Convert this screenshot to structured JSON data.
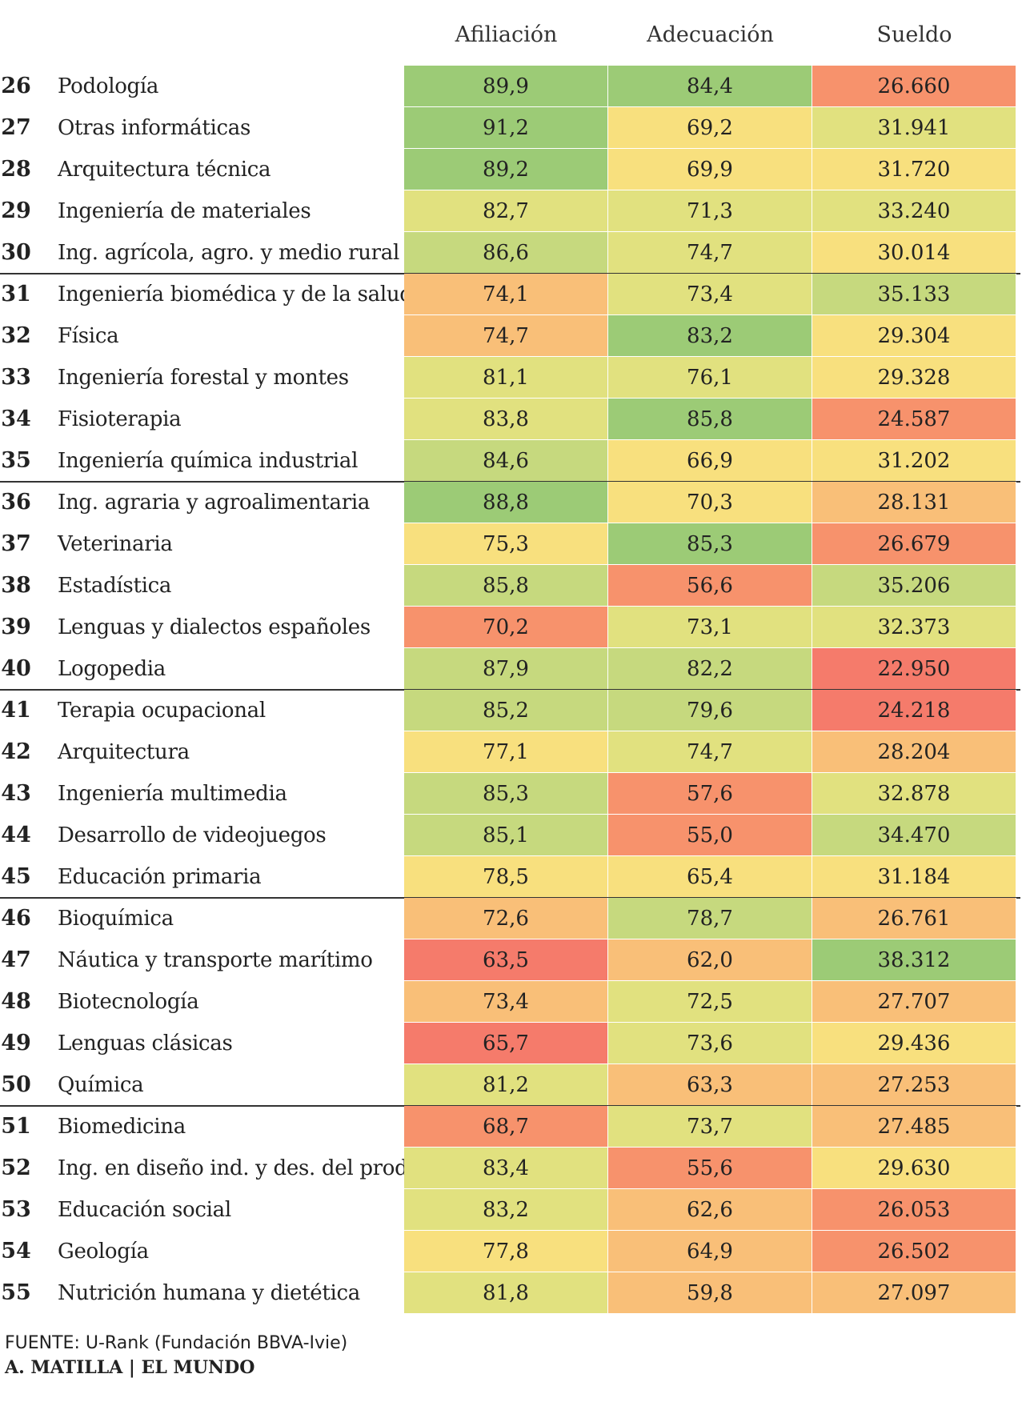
{
  "chart_data": {
    "type": "table",
    "columns": [
      "Afiliación",
      "Adecuación",
      "Sueldo"
    ],
    "rows": [
      {
        "rank": "26",
        "name": "Podología",
        "afiliacion": "89,9",
        "adecuacion": "84,4",
        "sueldo": "26.660"
      },
      {
        "rank": "27",
        "name": "Otras informáticas",
        "afiliacion": "91,2",
        "adecuacion": "69,2",
        "sueldo": "31.941"
      },
      {
        "rank": "28",
        "name": "Arquitectura técnica",
        "afiliacion": "89,2",
        "adecuacion": "69,9",
        "sueldo": "31.720"
      },
      {
        "rank": "29",
        "name": "Ingeniería de materiales",
        "afiliacion": "82,7",
        "adecuacion": "71,3",
        "sueldo": "33.240"
      },
      {
        "rank": "30",
        "name": "Ing. agrícola, agro. y medio rural",
        "afiliacion": "86,6",
        "adecuacion": "74,7",
        "sueldo": "30.014"
      },
      {
        "rank": "31",
        "name": "Ingeniería biomédica y de la salud",
        "afiliacion": "74,1",
        "adecuacion": "73,4",
        "sueldo": "35.133"
      },
      {
        "rank": "32",
        "name": "Física",
        "afiliacion": "74,7",
        "adecuacion": "83,2",
        "sueldo": "29.304"
      },
      {
        "rank": "33",
        "name": "Ingeniería forestal y montes",
        "afiliacion": "81,1",
        "adecuacion": "76,1",
        "sueldo": "29.328"
      },
      {
        "rank": "34",
        "name": "Fisioterapia",
        "afiliacion": "83,8",
        "adecuacion": "85,8",
        "sueldo": "24.587"
      },
      {
        "rank": "35",
        "name": "Ingeniería química industrial",
        "afiliacion": "84,6",
        "adecuacion": "66,9",
        "sueldo": "31.202"
      },
      {
        "rank": "36",
        "name": "Ing. agraria y agroalimentaria",
        "afiliacion": "88,8",
        "adecuacion": "70,3",
        "sueldo": "28.131"
      },
      {
        "rank": "37",
        "name": "Veterinaria",
        "afiliacion": "75,3",
        "adecuacion": "85,3",
        "sueldo": "26.679"
      },
      {
        "rank": "38",
        "name": "Estadística",
        "afiliacion": "85,8",
        "adecuacion": "56,6",
        "sueldo": "35.206"
      },
      {
        "rank": "39",
        "name": "Lenguas y dialectos españoles",
        "afiliacion": "70,2",
        "adecuacion": "73,1",
        "sueldo": "32.373"
      },
      {
        "rank": "40",
        "name": "Logopedia",
        "afiliacion": "87,9",
        "adecuacion": "82,2",
        "sueldo": "22.950"
      },
      {
        "rank": "41",
        "name": "Terapia ocupacional",
        "afiliacion": "85,2",
        "adecuacion": "79,6",
        "sueldo": "24.218"
      },
      {
        "rank": "42",
        "name": "Arquitectura",
        "afiliacion": "77,1",
        "adecuacion": "74,7",
        "sueldo": "28.204"
      },
      {
        "rank": "43",
        "name": "Ingeniería multimedia",
        "afiliacion": "85,3",
        "adecuacion": "57,6",
        "sueldo": "32.878"
      },
      {
        "rank": "44",
        "name": "Desarrollo de videojuegos",
        "afiliacion": "85,1",
        "adecuacion": "55,0",
        "sueldo": "34.470"
      },
      {
        "rank": "45",
        "name": "Educación primaria",
        "afiliacion": "78,5",
        "adecuacion": "65,4",
        "sueldo": "31.184"
      },
      {
        "rank": "46",
        "name": "Bioquímica",
        "afiliacion": "72,6",
        "adecuacion": "78,7",
        "sueldo": "26.761"
      },
      {
        "rank": "47",
        "name": "Náutica y transporte marítimo",
        "afiliacion": "63,5",
        "adecuacion": "62,0",
        "sueldo": "38.312"
      },
      {
        "rank": "48",
        "name": "Biotecnología",
        "afiliacion": "73,4",
        "adecuacion": "72,5",
        "sueldo": "27.707"
      },
      {
        "rank": "49",
        "name": "Lenguas clásicas",
        "afiliacion": "65,7",
        "adecuacion": "73,6",
        "sueldo": "29.436"
      },
      {
        "rank": "50",
        "name": "Química",
        "afiliacion": "81,2",
        "adecuacion": "63,3",
        "sueldo": "27.253"
      },
      {
        "rank": "51",
        "name": "Biomedicina",
        "afiliacion": "68,7",
        "adecuacion": "73,7",
        "sueldo": "27.485"
      },
      {
        "rank": "52",
        "name": "Ing. en diseño ind. y des. del producto",
        "afiliacion": "83,4",
        "adecuacion": "55,6",
        "sueldo": "29.630"
      },
      {
        "rank": "53",
        "name": "Educación social",
        "afiliacion": "83,2",
        "adecuacion": "62,6",
        "sueldo": "26.053"
      },
      {
        "rank": "54",
        "name": "Geología",
        "afiliacion": "77,8",
        "adecuacion": "64,9",
        "sueldo": "26.502"
      },
      {
        "rank": "55",
        "name": "Nutrición humana y dietética",
        "afiliacion": "81,8",
        "adecuacion": "59,8",
        "sueldo": "27.097"
      }
    ],
    "group_size": 5,
    "colors": {
      "green": "#9ccb76",
      "light_green": "#c6d97e",
      "yellow_green": "#e1e17f",
      "yellow": "#f8e07e",
      "orange": "#f9bf78",
      "red_orange": "#f7926c",
      "red": "#f57b6b"
    }
  },
  "footer": {
    "source_label": "FUENTE:",
    "source_text": "U-Rank (Fundación BBVA-Ivie)",
    "credit": "A. MATILLA | EL MUNDO"
  }
}
